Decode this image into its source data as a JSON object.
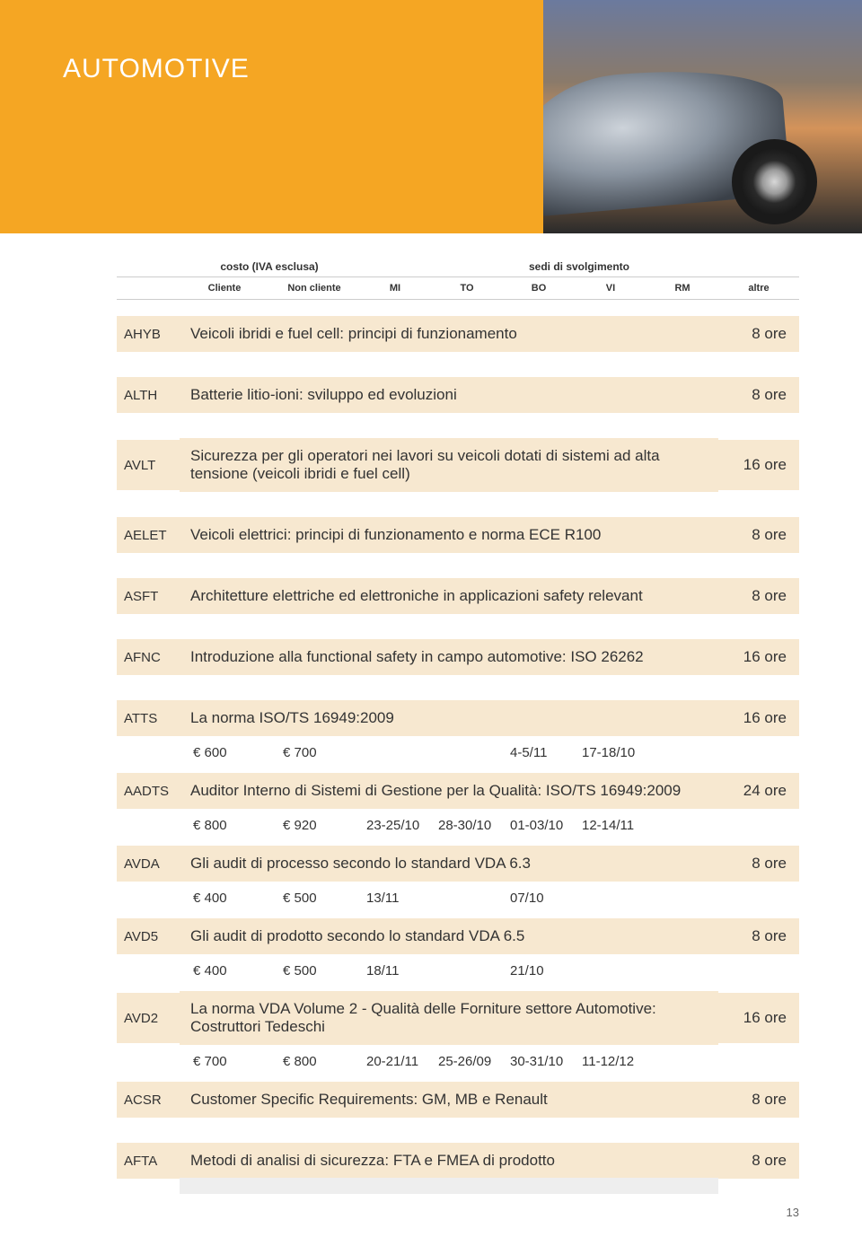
{
  "hero": {
    "title": "AUTOMOTIVE",
    "bg_left": "#f5a623"
  },
  "header": {
    "costo": "costo (IVA esclusa)",
    "sedi": "sedi di svolgimento",
    "cliente": "Cliente",
    "noncliente": "Non cliente",
    "mi": "MI",
    "to": "TO",
    "bo": "BO",
    "vi": "VI",
    "rm": "RM",
    "altre": "altre"
  },
  "courses": [
    {
      "code": "AHYB",
      "title": "Veicoli ibridi e fuel cell: principi di funzionamento",
      "hours": "8 ore",
      "spaced": true
    },
    {
      "code": "ALTH",
      "title": "Batterie litio-ioni: sviluppo ed evoluzioni",
      "hours": "8 ore",
      "spaced": true
    },
    {
      "code": "AVLT",
      "title": "Sicurezza per gli operatori nei lavori su veicoli dotati di sistemi ad alta tensione (veicoli ibridi e fuel cell)",
      "hours": "16 ore",
      "spaced": true,
      "tall": true
    },
    {
      "code": "AELET",
      "title": "Veicoli elettrici: principi di funzionamento e norma ECE R100",
      "hours": "8 ore",
      "spaced": true
    },
    {
      "code": "ASFT",
      "title": "Architetture elettriche ed elettroniche in applicazioni safety relevant",
      "hours": "8 ore",
      "spaced": true
    },
    {
      "code": "AFNC",
      "title": "Introduzione alla functional safety in campo automotive: ISO 26262",
      "hours": "16 ore",
      "spaced": true
    },
    {
      "code": "ATTS",
      "title": "La norma ISO/TS 16949:2009",
      "hours": "16 ore",
      "data": {
        "cliente": "€ 600",
        "noncliente": "€ 700",
        "mi": "",
        "to": "",
        "bo": "4-5/11",
        "vi": "17-18/10",
        "rm": "",
        "altre": ""
      }
    },
    {
      "code": "AADTS",
      "title": "Auditor Interno di Sistemi di Gestione per la Qualità:  ISO/TS 16949:2009",
      "hours": "24 ore",
      "data": {
        "cliente": "€ 800",
        "noncliente": "€ 920",
        "mi": "23-25/10",
        "to": "28-30/10",
        "bo": "01-03/10",
        "vi": "12-14/11",
        "rm": "",
        "altre": ""
      }
    },
    {
      "code": "AVDA",
      "title": "Gli audit di processo secondo lo standard VDA 6.3",
      "hours": "8 ore",
      "data": {
        "cliente": "€ 400",
        "noncliente": "€ 500",
        "mi": "13/11",
        "to": "",
        "bo": "07/10",
        "vi": "",
        "rm": "",
        "altre": ""
      }
    },
    {
      "code": "AVD5",
      "title": "Gli audit di prodotto secondo lo standard VDA 6.5",
      "hours": "8 ore",
      "data": {
        "cliente": "€ 400",
        "noncliente": "€ 500",
        "mi": "18/11",
        "to": "",
        "bo": "21/10",
        "vi": "",
        "rm": "",
        "altre": ""
      }
    },
    {
      "code": "AVD2",
      "title": "La norma VDA Volume 2 - Qualità delle Forniture settore Automotive: Costruttori Tedeschi",
      "hours": "16 ore",
      "tall": true,
      "data": {
        "cliente": "€ 700",
        "noncliente": "€ 800",
        "mi": "20-21/11",
        "to": "25-26/09",
        "bo": "30-31/10",
        "vi": "11-12/12",
        "rm": "",
        "altre": ""
      }
    },
    {
      "code": "ACSR",
      "title": "Customer Specific Requirements: GM, MB e Renault",
      "hours": "8 ore",
      "spaced": true
    },
    {
      "code": "AFTA",
      "title": "Metodi di analisi di sicurezza: FTA e FMEA di prodotto",
      "hours": "8 ore"
    }
  ],
  "page": "13",
  "colors": {
    "row_bg": "#f7e8d0",
    "text": "#333333"
  }
}
